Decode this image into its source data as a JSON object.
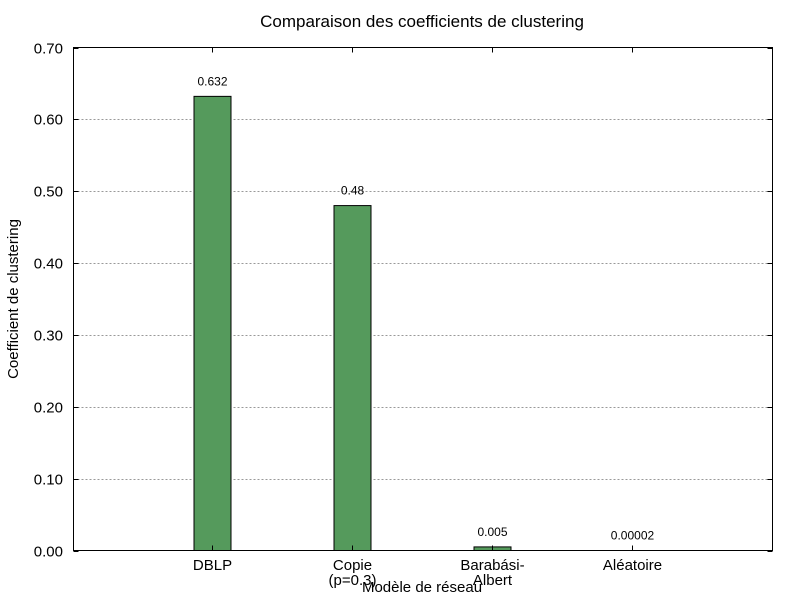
{
  "chart_data": {
    "type": "bar",
    "title": "Comparaison des coefficients de clustering",
    "xlabel": "Modèle de réseau",
    "ylabel": "Coefficient de clustering",
    "categories": [
      "DBLP",
      "Copie\n(p=0.3)",
      "Barabási-\nAlbert",
      "Aléatoire"
    ],
    "category_lines": [
      [
        "DBLP"
      ],
      [
        "Copie",
        "(p=0.3)"
      ],
      [
        "Barabási-",
        "Albert"
      ],
      [
        "Aléatoire"
      ]
    ],
    "values": [
      0.632,
      0.48,
      0.005,
      2e-05
    ],
    "value_labels": [
      "0.632",
      "0.48",
      "0.005",
      "0.00002"
    ],
    "ylim": [
      0,
      0.7
    ],
    "yticks": [
      0.0,
      0.1,
      0.2,
      0.3,
      0.4,
      0.5,
      0.6,
      0.7
    ],
    "ytick_labels": [
      "0.00",
      "0.10",
      "0.20",
      "0.30",
      "0.40",
      "0.50",
      "0.60",
      "0.70"
    ],
    "grid": "y-dotted",
    "legend": null,
    "bar_color": "#559a5c",
    "bar_edge_color": "#000000"
  }
}
